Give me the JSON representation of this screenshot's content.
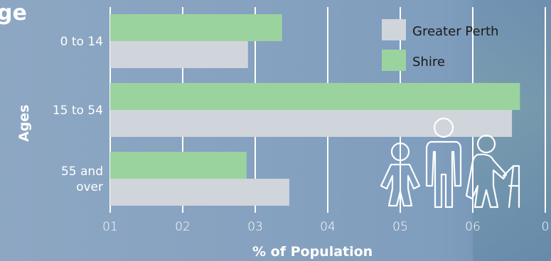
{
  "title_fragment": "ge",
  "icon": "people-age-groups-icon",
  "colors": {
    "shire": "#9bd39e",
    "greater_perth": "#cfd5db",
    "grid": "#ffffff"
  },
  "chart_data": {
    "type": "bar",
    "orientation": "horizontal",
    "categories": [
      "0 to 14",
      "15 to 54",
      "55 and over"
    ],
    "category_lines": [
      [
        "0 to 14"
      ],
      [
        "15 to 54"
      ],
      [
        "55 and",
        "over"
      ]
    ],
    "series": [
      {
        "name": "Shire",
        "values": [
          23.7,
          56.5,
          18.8
        ]
      },
      {
        "name": "Greater Perth",
        "values": [
          19.0,
          55.4,
          24.7
        ]
      }
    ],
    "x_tick_labels": [
      "01",
      "02",
      "03",
      "04",
      "05",
      "06",
      "0"
    ],
    "xlim": [
      0,
      60
    ],
    "xlabel": "% of Population",
    "ylabel": "Ages",
    "legend": [
      "Greater Perth",
      "Shire"
    ],
    "legend_position": "top-right",
    "grid": true
  }
}
